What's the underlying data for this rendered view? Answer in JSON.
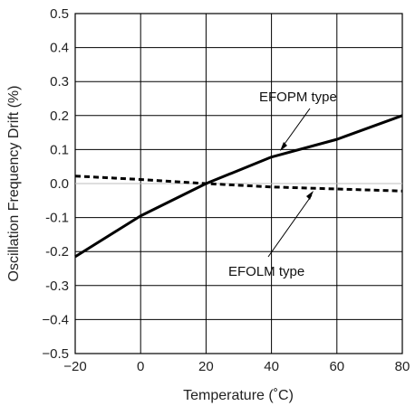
{
  "chart_data": {
    "type": "line",
    "xlabel": "Temperature (˚C)",
    "ylabel": "Oscillation Frequency Drift (%)",
    "xlim": [
      -20,
      80
    ],
    "ylim": [
      -0.5,
      0.5
    ],
    "x_ticks": [
      "−20",
      "0",
      "20",
      "40",
      "60",
      "80"
    ],
    "y_ticks": [
      "0.5",
      "0.4",
      "0.3",
      "0.2",
      "0.1",
      "0.0",
      "-0.1",
      "-0.2",
      "-0.3",
      "−0.4",
      "−0.5"
    ],
    "grid": true,
    "series": [
      {
        "name": "EFOPM type",
        "style": "solid",
        "color": "#000000",
        "x": [
          -20,
          0,
          20,
          40,
          60,
          80
        ],
        "y": [
          -0.215,
          -0.095,
          0.0,
          0.078,
          0.13,
          0.2
        ]
      },
      {
        "name": "EFOLM type",
        "style": "dashed",
        "color": "#000000",
        "x": [
          -20,
          0,
          20,
          40,
          60,
          80
        ],
        "y": [
          0.022,
          0.012,
          0.0,
          -0.01,
          -0.016,
          -0.022
        ]
      }
    ],
    "annotations": [
      {
        "text": "EFOPM type",
        "series": 0
      },
      {
        "text": "EFOLM type",
        "series": 1
      }
    ]
  }
}
